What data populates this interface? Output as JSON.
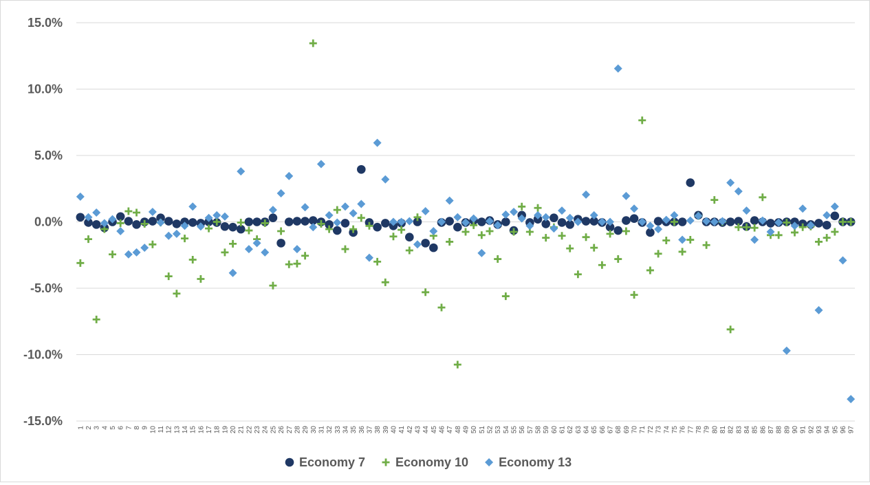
{
  "chart_data": {
    "type": "scatter",
    "title": "",
    "xlabel": "",
    "ylabel": "",
    "x": [
      1,
      2,
      3,
      4,
      5,
      6,
      7,
      8,
      9,
      10,
      11,
      12,
      13,
      14,
      15,
      16,
      17,
      18,
      19,
      20,
      21,
      22,
      23,
      24,
      25,
      26,
      27,
      28,
      29,
      30,
      31,
      32,
      33,
      34,
      35,
      36,
      37,
      38,
      39,
      40,
      41,
      42,
      43,
      44,
      45,
      46,
      47,
      48,
      49,
      50,
      51,
      52,
      53,
      54,
      55,
      56,
      57,
      58,
      59,
      60,
      61,
      62,
      63,
      64,
      65,
      66,
      67,
      68,
      69,
      70,
      71,
      72,
      73,
      74,
      75,
      76,
      77,
      78,
      79,
      80,
      81,
      82,
      83,
      84,
      85,
      86,
      87,
      88,
      89,
      90,
      91,
      92,
      93,
      94,
      95,
      96,
      97
    ],
    "x_tick_labels": [
      "1",
      "2",
      "3",
      "4",
      "5",
      "6",
      "7",
      "8",
      "9",
      "10",
      "11",
      "12",
      "13",
      "14",
      "15",
      "16",
      "17",
      "18",
      "19",
      "20",
      "21",
      "22",
      "23",
      "24",
      "25",
      "26",
      "27",
      "28",
      "29",
      "30",
      "31",
      "32",
      "33",
      "34",
      "35",
      "36",
      "37",
      "38",
      "39",
      "40",
      "41",
      "42",
      "43",
      "44",
      "45",
      "46",
      "47",
      "48",
      "49",
      "50",
      "51",
      "52",
      "53",
      "54",
      "55",
      "56",
      "57",
      "58",
      "59",
      "60",
      "61",
      "62",
      "63",
      "64",
      "65",
      "66",
      "67",
      "68",
      "69",
      "70",
      "71",
      "72",
      "73",
      "74",
      "75",
      "76",
      "77",
      "78",
      "79",
      "80",
      "81",
      "82",
      "83",
      "84",
      "85",
      "86",
      "87",
      "88",
      "89",
      "90",
      "91",
      "92",
      "93",
      "94",
      "95",
      "96",
      "97"
    ],
    "ylim": [
      -15,
      15
    ],
    "y_ticks": [
      15,
      10,
      5,
      0,
      -5,
      -10,
      -15
    ],
    "y_tick_labels": [
      "15.0%",
      "10.0%",
      "5.0%",
      "0.0%",
      "-5.0%",
      "-10.0%",
      "-15.0%"
    ],
    "grid": true,
    "legend_position": "bottom",
    "series": [
      {
        "name": "Economy 7",
        "marker": "circle",
        "color": "#1f3864",
        "values": [
          0.35,
          -0.05,
          -0.2,
          -0.45,
          0.0,
          0.4,
          0.05,
          -0.2,
          0.0,
          0.05,
          0.3,
          0.05,
          -0.15,
          0.0,
          -0.05,
          -0.1,
          0.0,
          -0.05,
          -0.35,
          -0.4,
          -0.55,
          0.0,
          0.0,
          0.0,
          0.3,
          -1.6,
          0.0,
          0.05,
          0.05,
          0.1,
          0.0,
          -0.2,
          -0.65,
          -0.1,
          -0.8,
          3.95,
          -0.05,
          -0.4,
          -0.1,
          -0.3,
          -0.1,
          -1.15,
          0.0,
          -1.6,
          -1.95,
          -0.05,
          0.05,
          -0.4,
          -0.05,
          0.1,
          0.0,
          0.1,
          -0.2,
          0.0,
          -0.65,
          0.5,
          -0.05,
          0.2,
          -0.15,
          0.3,
          -0.05,
          -0.2,
          0.2,
          0.05,
          0.05,
          -0.05,
          -0.4,
          -0.65,
          0.1,
          0.25,
          -0.05,
          -0.8,
          0.05,
          0.0,
          0.0,
          0.0,
          2.95,
          0.5,
          0.0,
          0.0,
          -0.05,
          0.0,
          0.05,
          -0.35,
          0.1,
          0.0,
          -0.1,
          -0.05,
          0.0,
          0.0,
          -0.15,
          -0.2,
          -0.1,
          -0.25,
          0.45,
          0.0,
          0.0
        ]
      },
      {
        "name": "Economy 10",
        "marker": "plus",
        "color": "#70ad47",
        "values": [
          -3.1,
          -1.3,
          -7.35,
          -0.55,
          -2.45,
          -0.1,
          0.8,
          0.7,
          -0.15,
          -1.7,
          -0.05,
          -4.1,
          -5.4,
          -1.25,
          -2.85,
          -4.3,
          -0.5,
          0.0,
          -2.3,
          -1.65,
          -0.05,
          -0.65,
          -1.3,
          -0.1,
          -4.8,
          -0.7,
          -3.2,
          -3.15,
          -2.55,
          13.45,
          -0.15,
          -0.55,
          0.9,
          -2.05,
          -0.55,
          0.3,
          -0.3,
          -3.0,
          -4.55,
          -1.1,
          -0.6,
          -2.15,
          0.35,
          -5.3,
          -1.05,
          -6.45,
          -1.5,
          -10.75,
          -0.75,
          -0.25,
          -1.0,
          -0.7,
          -2.8,
          -5.6,
          -0.75,
          1.15,
          -0.75,
          1.05,
          -1.2,
          -0.4,
          -1.05,
          -2.0,
          -3.95,
          -1.15,
          -1.95,
          -3.25,
          -0.9,
          -2.8,
          -0.7,
          -5.5,
          7.65,
          -3.65,
          -2.4,
          -1.4,
          0.0,
          -2.25,
          -1.35,
          0.45,
          -1.75,
          1.65,
          0.0,
          -8.1,
          -0.4,
          -0.4,
          -0.45,
          1.85,
          -1.0,
          -1.0,
          -0.05,
          -0.8,
          -0.4,
          -0.35,
          -1.5,
          -1.2,
          -0.75,
          0.0,
          0.0
        ]
      },
      {
        "name": "Economy 13",
        "marker": "diamond",
        "color": "#5b9bd5",
        "values": [
          1.9,
          0.35,
          0.7,
          -0.1,
          0.2,
          -0.7,
          -2.45,
          -2.3,
          -1.95,
          0.75,
          -0.05,
          -1.05,
          -0.9,
          -0.3,
          1.15,
          -0.35,
          0.3,
          0.5,
          0.4,
          -3.85,
          3.8,
          -2.05,
          -1.6,
          -2.3,
          0.9,
          2.15,
          3.45,
          -2.05,
          1.1,
          -0.4,
          4.35,
          0.5,
          -0.05,
          1.15,
          0.65,
          1.35,
          -2.7,
          5.95,
          3.2,
          0.0,
          0.0,
          0.05,
          -1.7,
          0.8,
          -0.7,
          0.0,
          1.6,
          0.35,
          -0.05,
          0.25,
          -2.35,
          0.05,
          -0.25,
          0.55,
          0.75,
          0.25,
          -0.3,
          0.5,
          0.35,
          -0.5,
          0.85,
          0.3,
          0.0,
          2.05,
          0.5,
          0.0,
          0.0,
          11.55,
          1.95,
          1.0,
          0.0,
          -0.3,
          -0.55,
          0.15,
          0.5,
          -1.35,
          0.1,
          0.45,
          0.05,
          0.0,
          0.05,
          2.95,
          2.3,
          0.85,
          -1.35,
          0.1,
          -0.75,
          -0.05,
          -9.7,
          -0.3,
          1.0,
          -0.25,
          -6.65,
          0.5,
          1.15,
          -2.9,
          -13.35
        ]
      }
    ]
  }
}
